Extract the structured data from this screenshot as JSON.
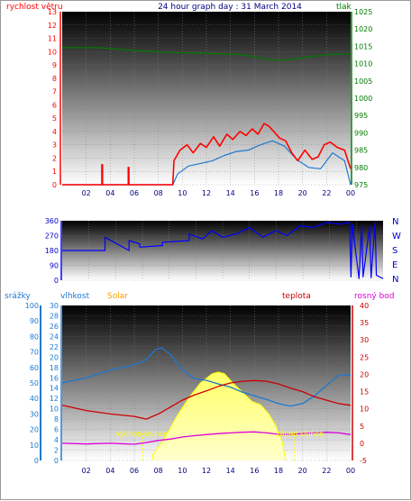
{
  "colors": {
    "wind": "#ff0000",
    "wind_avg": "#1e78d0",
    "pressure": "#007a00",
    "direction": "#0000ff",
    "rain": "#1e78d0",
    "humidity": "#1e78d0",
    "solar": "#ffff00",
    "solar_text": "#ff9a00",
    "temperature": "#cc0000",
    "dewpoint": "#dd00dd",
    "sun_event": "#ffff00"
  },
  "chart_data": [
    {
      "type": "line",
      "title": "24 hour graph day : 31 March 2014",
      "left_axis_label": "rychlost větru",
      "right_axis_label": "tlak",
      "x_ticks": [
        "02",
        "04",
        "06",
        "08",
        "10",
        "12",
        "14",
        "16",
        "18",
        "20",
        "22",
        "00"
      ],
      "x_range": [
        0,
        24
      ],
      "left_ylim": [
        0,
        13
      ],
      "left_ticks": [
        "0",
        "1",
        "2",
        "3",
        "4",
        "5",
        "6",
        "7",
        "8",
        "9",
        "10",
        "11",
        "12",
        "13"
      ],
      "right_ylim": [
        975,
        1025
      ],
      "right_ticks": [
        "975",
        "980",
        "985",
        "990",
        "995",
        "1000",
        "1005",
        "1010",
        "1015",
        "1020",
        "1025"
      ],
      "grid": true,
      "series": [
        {
          "key": "pressure",
          "axis": "right",
          "x": [
            0,
            3,
            6,
            9,
            12,
            15,
            17.5,
            19,
            22,
            24
          ],
          "y": [
            1014.6,
            1014.6,
            1013.8,
            1013.2,
            1013.0,
            1012.6,
            1011.0,
            1011.2,
            1012.6,
            1012.8
          ]
        },
        {
          "key": "wind_avg",
          "axis": "left",
          "x": [
            0,
            9.2,
            9.6,
            10.5,
            11.5,
            12.5,
            13.5,
            14.5,
            15.5,
            16.5,
            17.5,
            18.5,
            19.5,
            20.5,
            21.5,
            22.5,
            23.5,
            24
          ],
          "y": [
            0,
            0,
            0.8,
            1.4,
            1.6,
            1.8,
            2.2,
            2.5,
            2.6,
            3.0,
            3.3,
            2.9,
            1.9,
            1.3,
            1.2,
            2.4,
            1.8,
            0
          ]
        },
        {
          "key": "wind_gusts",
          "axis": "left",
          "x": [
            0,
            3.3,
            3.3,
            3.35,
            3.35,
            5.5,
            5.5,
            5.55,
            5.55,
            9.2,
            9.3,
            9.8,
            10.4,
            10.9,
            11.5,
            12,
            12.6,
            13.1,
            13.7,
            14.2,
            14.8,
            15.3,
            15.8,
            16.3,
            16.8,
            17.2,
            17.6,
            18.1,
            18.6,
            19.1,
            19.6,
            20.2,
            20.8,
            21.3,
            21.8,
            22.3,
            22.9,
            23.5,
            24
          ],
          "y": [
            0,
            0,
            1.5,
            1.5,
            0,
            0,
            1.3,
            1.3,
            0,
            0,
            1.8,
            2.6,
            3.0,
            2.4,
            3.1,
            2.8,
            3.6,
            2.9,
            3.8,
            3.4,
            4.0,
            3.7,
            4.2,
            3.8,
            4.6,
            4.4,
            4.0,
            3.5,
            3.3,
            2.4,
            1.8,
            2.6,
            1.9,
            2.1,
            3.0,
            3.2,
            2.8,
            2.6,
            1.2
          ]
        }
      ]
    },
    {
      "type": "line",
      "title": "",
      "left_ylim": [
        0,
        360
      ],
      "left_ticks": [
        "0",
        "90",
        "180",
        "270",
        "360"
      ],
      "right_labels": [
        "N",
        "W",
        "S",
        "E",
        "N"
      ],
      "grid": true,
      "series": [
        {
          "key": "direction",
          "x": [
            0,
            3.2,
            3.2,
            5.0,
            5.0,
            5.8,
            5.8,
            7.5,
            7.5,
            9.5,
            9.5,
            10.5,
            11.2,
            12.0,
            13.0,
            14.0,
            15.0,
            16.0,
            16.8,
            17.8,
            18.8,
            19.8,
            20.8,
            21.5,
            21.6,
            21.7,
            22.2,
            22.4,
            22.5,
            23.0,
            23.1,
            23.4,
            23.5,
            24
          ],
          "y": [
            180,
            180,
            260,
            180,
            240,
            220,
            200,
            210,
            230,
            240,
            280,
            250,
            300,
            260,
            280,
            320,
            260,
            300,
            270,
            330,
            320,
            350,
            340,
            350,
            20,
            340,
            10,
            330,
            20,
            330,
            15,
            350,
            30,
            10
          ]
        }
      ]
    },
    {
      "type": "line",
      "title": "",
      "axis_labels": {
        "rain": "srážky",
        "humidity": "vlhkost",
        "solar": "Solar",
        "temperature": "teplota",
        "dewpoint": "rosný bod"
      },
      "x_ticks": [
        "02",
        "04",
        "06",
        "08",
        "10",
        "12",
        "14",
        "16",
        "18",
        "20",
        "22",
        "00"
      ],
      "rain_ticks": [
        "0",
        "10",
        "20",
        "30",
        "40",
        "50",
        "60",
        "70",
        "80",
        "90",
        "100"
      ],
      "humidity_ticks": [
        "0",
        "2",
        "4",
        "6",
        "8",
        "10",
        "12",
        "14",
        "16",
        "18",
        "20",
        "22",
        "24",
        "26",
        "28",
        "30"
      ],
      "temp_ticks": [
        "-5",
        "0",
        "5",
        "10",
        "15",
        "20",
        "25",
        "30",
        "35",
        "40"
      ],
      "rain_ylim": [
        0,
        100
      ],
      "humidity_ylim": [
        0,
        30
      ],
      "temp_ylim": [
        -5,
        40
      ],
      "sunrise": {
        "x": 6.7,
        "label": "východ slunce"
      },
      "sunset": {
        "x": 19.3,
        "label": "západ slunce"
      },
      "grid": true,
      "series": [
        {
          "key": "solar",
          "scale": "rain",
          "x": [
            7.5,
            8.5,
            9.5,
            10.5,
            11.5,
            12.5,
            13.0,
            13.5,
            14.2,
            15.0,
            15.8,
            16.5,
            17.2,
            17.8,
            18.3,
            18.6
          ],
          "y": [
            3,
            14,
            28,
            40,
            50,
            56,
            57,
            56,
            50,
            44,
            38,
            36,
            30,
            22,
            12,
            0
          ]
        },
        {
          "key": "humidity",
          "scale": "humidity",
          "x": [
            0,
            2,
            4,
            6,
            7,
            7.8,
            8.3,
            9.0,
            10,
            11,
            12,
            13,
            14,
            15,
            16,
            17,
            18,
            19,
            20,
            21,
            22,
            23,
            24
          ],
          "y": [
            15.0,
            16.0,
            17.5,
            18.5,
            19.5,
            21.5,
            21.8,
            20.5,
            17.5,
            15.8,
            15.5,
            14.8,
            14.2,
            13.2,
            12.5,
            11.8,
            11.0,
            10.5,
            11.0,
            12.5,
            14.5,
            16.5,
            16.5
          ]
        },
        {
          "key": "temperature",
          "scale": "temp",
          "x": [
            0,
            2,
            4,
            6,
            7,
            8,
            9,
            10,
            11,
            12,
            13,
            14,
            15,
            16,
            17,
            18,
            19,
            20,
            21,
            22,
            23,
            24
          ],
          "y": [
            11,
            9.5,
            8.5,
            7.8,
            7.0,
            8.5,
            10.5,
            12.5,
            14.0,
            15.2,
            16.5,
            17.5,
            18.0,
            18.2,
            18.0,
            17.2,
            16.0,
            15.0,
            13.5,
            12.5,
            11.5,
            11.0
          ]
        },
        {
          "key": "dewpoint",
          "scale": "temp",
          "x": [
            0,
            2,
            4,
            6,
            7,
            8,
            9,
            10,
            11,
            12,
            13,
            14,
            15,
            16,
            17,
            18,
            19,
            20,
            21,
            22,
            23,
            24
          ],
          "y": [
            0,
            -0.2,
            0.0,
            -0.3,
            0.2,
            0.8,
            1.2,
            1.8,
            2.2,
            2.5,
            2.8,
            3.0,
            3.2,
            3.3,
            3.0,
            2.6,
            2.6,
            2.8,
            3.0,
            3.2,
            3.0,
            2.5
          ]
        }
      ]
    }
  ]
}
